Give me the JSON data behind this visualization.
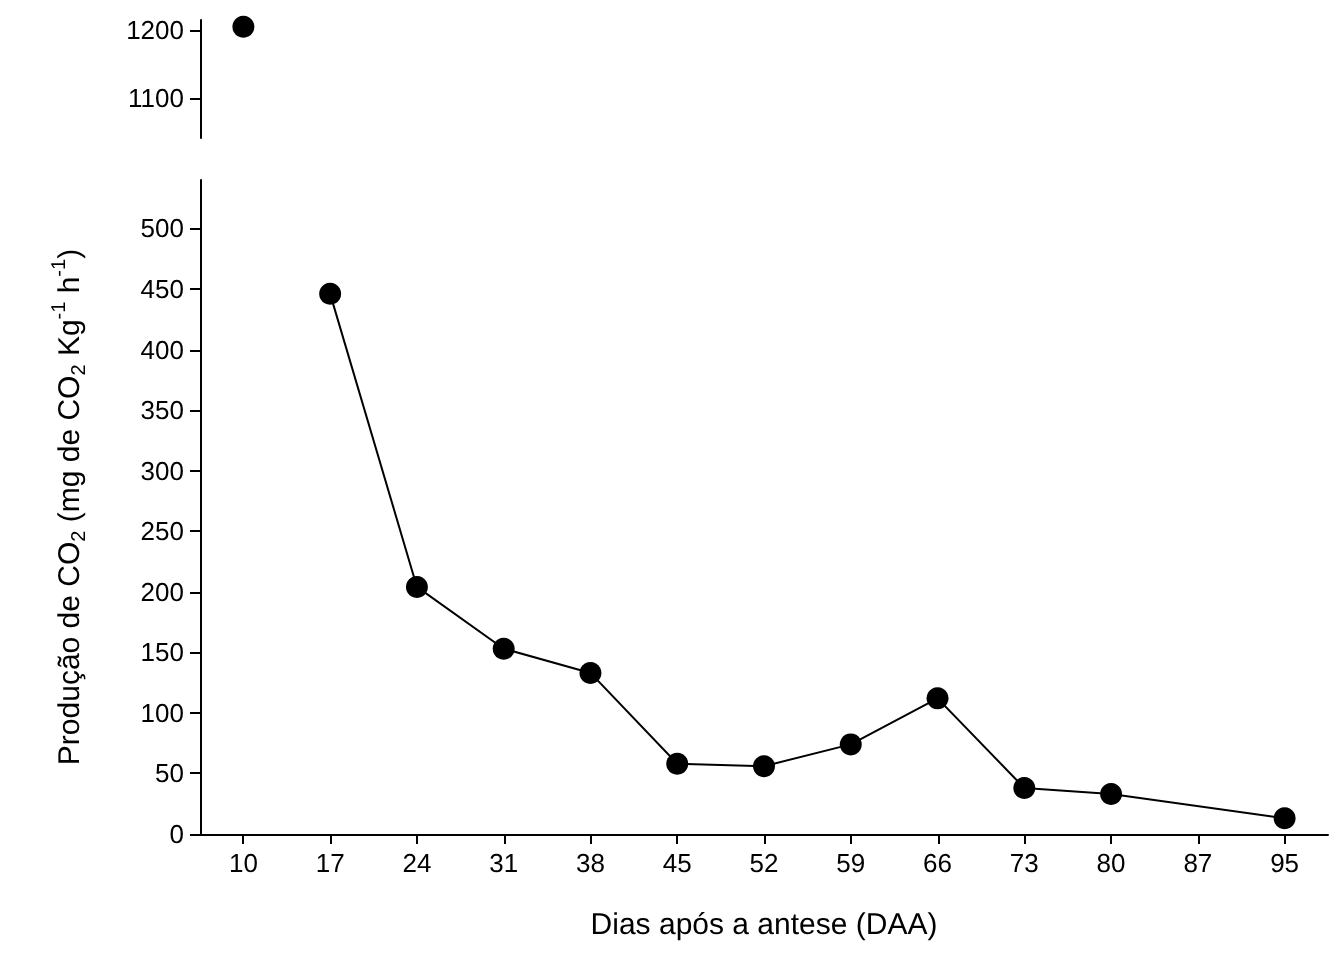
{
  "chart_data": [
    {
      "type": "line",
      "categories": [
        "10",
        "17",
        "24",
        "31",
        "38",
        "45",
        "52",
        "59",
        "66",
        "73",
        "80",
        "87",
        "95"
      ],
      "values": [
        1205,
        null,
        null,
        null,
        null,
        null,
        null,
        null,
        null,
        null,
        null,
        null,
        null
      ],
      "color": "#000000",
      "ylim": [
        1040,
        1215
      ],
      "yticks": [
        1100,
        1200
      ],
      "tick_labels": "y",
      "marker": "circle"
    },
    {
      "type": "line",
      "categories": [
        "10",
        "17",
        "24",
        "31",
        "38",
        "45",
        "52",
        "59",
        "66",
        "73",
        "80",
        "87",
        "95"
      ],
      "values": [
        null,
        446,
        204,
        153,
        133,
        58,
        56,
        74,
        112,
        38,
        33,
        null,
        13
      ],
      "color": "#000000",
      "ylim": [
        0,
        540
      ],
      "yticks": [
        0,
        50,
        100,
        150,
        200,
        250,
        300,
        350,
        400,
        450,
        500
      ],
      "xlabel": "Dias após a antese (DAA)",
      "ylabel": "Produção de CO$_{2}$ (mg de CO$_{2}$ Kg$^{-1}$ h$^{-1}$)",
      "marker": "circle"
    }
  ]
}
